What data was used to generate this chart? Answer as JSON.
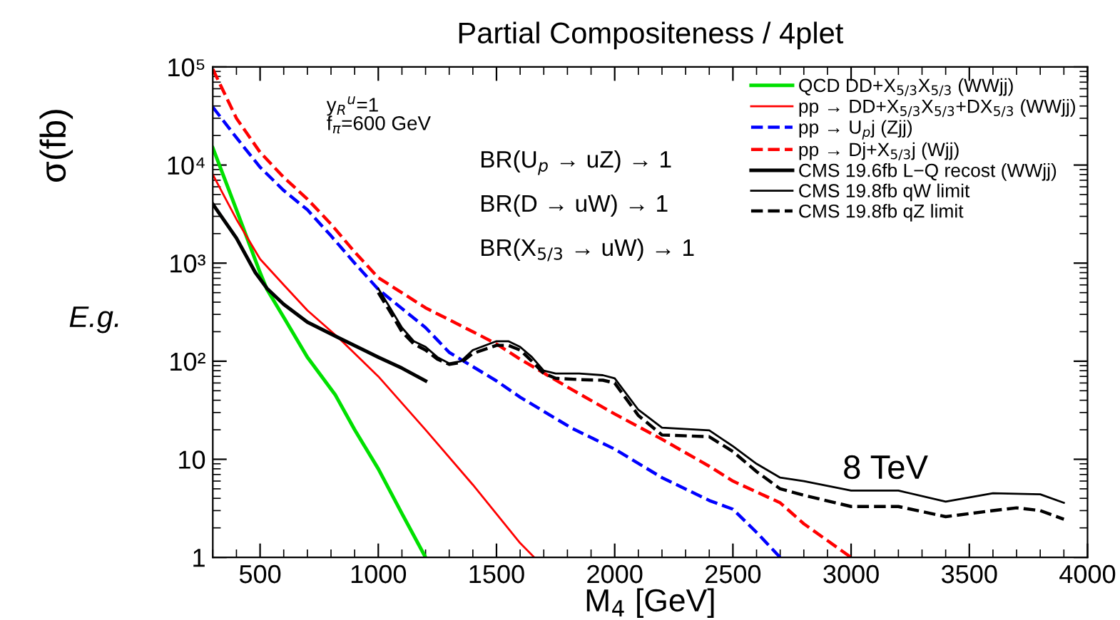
{
  "chart_data": {
    "type": "line",
    "title": "Partial Compositeness / 4plet",
    "xlabel": "M$_{4}$ [GeV]",
    "ylabel": "σ(fb)",
    "log": "y",
    "xlim": [
      300,
      4000
    ],
    "ylim": [
      1,
      100000
    ],
    "xticks": [
      500,
      1000,
      1500,
      2000,
      2500,
      3000,
      3500,
      4000
    ],
    "yticks": [
      1,
      10,
      {
        "value": 100,
        "label": "10²"
      },
      {
        "value": 1000,
        "label": "10³"
      },
      {
        "value": 10000,
        "label": "10⁴"
      },
      {
        "value": 100000,
        "label": "10⁵"
      }
    ],
    "grid": false,
    "legend": "top right",
    "annotations": [
      "y$_{R}$$^{u}$=1\nf$_{π}$=600 GeV",
      "BR(U$_{p}$ → uZ) → 1",
      "BR(D → uW) → 1",
      "BR(X$_{5/3}$ → uW) → 1",
      "8 TeV",
      "E.g."
    ],
    "series": [
      {
        "name": "QCD DD+X$_{5/3}$X$_{5/3}$ (WWjj)",
        "color": "#00e000",
        "line_style": "solid",
        "x": [
          300,
          400,
          500,
          529,
          600,
          700,
          819,
          900,
          1000,
          1100,
          1200
        ],
        "values": [
          15000,
          3500,
          800,
          540,
          280,
          110,
          45,
          20,
          8,
          2.8,
          1
        ]
      },
      {
        "name": "pp → DD+X$_{5/3}$X$_{5/3}$+DX$_{5/3}$ (WWjj)",
        "color": "#ff0000",
        "line_style": "solid",
        "x": [
          300,
          400,
          500,
          600,
          700,
          831,
          1000,
          1200,
          1400,
          1600,
          1660
        ],
        "values": [
          8000,
          2800,
          1100,
          600,
          330,
          174,
          70,
          20,
          5.5,
          1.4,
          1
        ]
      },
      {
        "name": "pp → U$_{p}$j (Zjj)",
        "color": "#0000ff",
        "line_style": "dashed",
        "x": [
          300,
          400,
          500,
          600,
          700,
          800,
          900,
          1000,
          1200,
          1300,
          1500,
          1600,
          1815,
          2000,
          2200,
          2400,
          2500,
          2600,
          2700
        ],
        "values": [
          39000,
          19000,
          9500,
          5500,
          3500,
          1900,
          1000,
          540,
          220,
          123,
          63,
          43,
          21,
          12.7,
          6.5,
          3.8,
          3.1,
          1.8,
          1
        ]
      },
      {
        "name": "pp → Dj+X$_{5/3}$j (Wjj)",
        "color": "#ff0000",
        "line_style": "dashed",
        "x": [
          300,
          400,
          500,
          600,
          700,
          800,
          900,
          1000,
          1200,
          1400,
          1500,
          1600,
          1815,
          2000,
          2200,
          2400,
          2500,
          2700,
          2800,
          3000
        ],
        "values": [
          95000,
          30000,
          13500,
          7500,
          4500,
          2500,
          1300,
          710,
          350,
          200,
          150,
          105,
          52,
          29,
          16,
          8.5,
          6,
          3.6,
          2.2,
          1
        ]
      },
      {
        "name": "CMS 19.6fb L−Q recost (WWjj)",
        "color": "#000000",
        "line_style": "solid",
        "x": [
          300,
          400,
          480,
          530,
          600,
          700,
          831,
          1000,
          1100,
          1200
        ],
        "values": [
          4000,
          1800,
          800,
          550,
          380,
          250,
          174,
          110,
          85,
          63
        ]
      },
      {
        "name": "CMS 19.8fb qW limit",
        "color": "#000000",
        "line_style": "solid",
        "x": [
          1000,
          1050,
          1100,
          1150,
          1200,
          1250,
          1300,
          1350,
          1400,
          1500,
          1550,
          1600,
          1650,
          1700,
          1750,
          1850,
          1950,
          2000,
          2100,
          2200,
          2400,
          2500,
          2600,
          2700,
          2800,
          3000,
          3200,
          3400,
          3600,
          3800,
          3900
        ],
        "values": [
          550,
          350,
          220,
          160,
          140,
          110,
          95,
          100,
          130,
          160,
          160,
          140,
          110,
          80,
          75,
          75,
          72,
          67,
          32,
          21,
          19.7,
          13.6,
          9,
          6.5,
          6,
          4.8,
          4.8,
          3.7,
          4.5,
          4.4,
          3.6
        ]
      },
      {
        "name": "CMS 19.8fb qZ limit",
        "color": "#000000",
        "line_style": "dashed",
        "x": [
          1000,
          1050,
          1100,
          1150,
          1200,
          1250,
          1300,
          1350,
          1400,
          1500,
          1550,
          1600,
          1650,
          1700,
          1750,
          1850,
          1950,
          2000,
          2100,
          2200,
          2400,
          2500,
          2600,
          2700,
          2800,
          3000,
          3200,
          3400,
          3600,
          3700,
          3800,
          3900
        ],
        "values": [
          500,
          320,
          200,
          150,
          130,
          105,
          93,
          97,
          120,
          145,
          145,
          130,
          100,
          75,
          67,
          65,
          64,
          60,
          28,
          17.7,
          17,
          12,
          7.5,
          5,
          4.3,
          3.3,
          3.3,
          2.6,
          3.0,
          3.2,
          3.0,
          2.45
        ]
      }
    ]
  }
}
